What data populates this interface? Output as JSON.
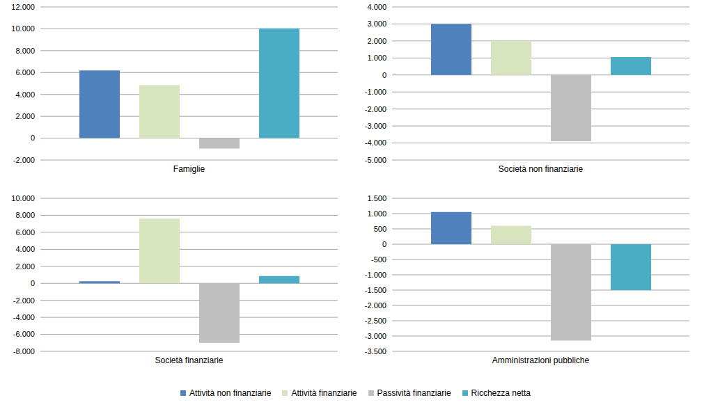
{
  "chart_data": [
    {
      "type": "bar",
      "categories": [
        "Famiglie"
      ],
      "grid": true,
      "ylim": [
        -2000,
        12000
      ],
      "yticks": [
        {
          "value": -2000,
          "label": "-2.000"
        },
        0,
        {
          "value": 2000,
          "label": "2.000"
        },
        {
          "value": 4000,
          "label": "4.000"
        },
        {
          "value": 6000,
          "label": "6.000"
        },
        {
          "value": 8000,
          "label": "8.000"
        },
        {
          "value": 10000,
          "label": "10.000"
        },
        {
          "value": 12000,
          "label": "12.000"
        }
      ],
      "series": [
        {
          "name": "Attività non finanziarie",
          "color": "#4f81bd",
          "values": [
            6200
          ]
        },
        {
          "name": "Attività finanziarie",
          "color": "#d7e4bd",
          "values": [
            4850
          ]
        },
        {
          "name": "Passività finanziarie",
          "color": "#bfbfbf",
          "values": [
            -950
          ]
        },
        {
          "name": "Ricchezza netta",
          "color": "#4bacc6",
          "values": [
            10050
          ]
        }
      ]
    },
    {
      "type": "bar",
      "categories": [
        "Società non finanziarie"
      ],
      "grid": true,
      "ylim": [
        -5000,
        4000
      ],
      "yticks": [
        {
          "value": -5000,
          "label": "-5.000"
        },
        {
          "value": -4000,
          "label": "-4.000"
        },
        {
          "value": -3000,
          "label": "-3.000"
        },
        {
          "value": -2000,
          "label": "-2.000"
        },
        {
          "value": -1000,
          "label": "-1.000"
        },
        0,
        {
          "value": 1000,
          "label": "1.000"
        },
        {
          "value": 2000,
          "label": "2.000"
        },
        {
          "value": 3000,
          "label": "3.000"
        },
        {
          "value": 4000,
          "label": "4.000"
        }
      ],
      "series": [
        {
          "name": "Attività non finanziarie",
          "color": "#4f81bd",
          "values": [
            3000
          ]
        },
        {
          "name": "Attività finanziarie",
          "color": "#d7e4bd",
          "values": [
            2000
          ]
        },
        {
          "name": "Passività finanziarie",
          "color": "#bfbfbf",
          "values": [
            -3900
          ]
        },
        {
          "name": "Ricchezza netta",
          "color": "#4bacc6",
          "values": [
            1050
          ]
        }
      ]
    },
    {
      "type": "bar",
      "categories": [
        "Società finanziarie"
      ],
      "grid": true,
      "ylim": [
        -8000,
        10000
      ],
      "yticks": [
        {
          "value": -8000,
          "label": "-8.000"
        },
        {
          "value": -6000,
          "label": "-6.000"
        },
        {
          "value": -4000,
          "label": "-4.000"
        },
        {
          "value": -2000,
          "label": "-2.000"
        },
        0,
        {
          "value": 2000,
          "label": "2.000"
        },
        {
          "value": 4000,
          "label": "4.000"
        },
        {
          "value": 6000,
          "label": "6.000"
        },
        {
          "value": 8000,
          "label": "8.000"
        },
        {
          "value": 10000,
          "label": "10.000"
        }
      ],
      "series": [
        {
          "name": "Attività non finanziarie",
          "color": "#4f81bd",
          "values": [
            250
          ]
        },
        {
          "name": "Attività finanziarie",
          "color": "#d7e4bd",
          "values": [
            7600
          ]
        },
        {
          "name": "Passività finanziarie",
          "color": "#bfbfbf",
          "values": [
            -7000
          ]
        },
        {
          "name": "Ricchezza netta",
          "color": "#4bacc6",
          "values": [
            850
          ]
        }
      ]
    },
    {
      "type": "bar",
      "categories": [
        "Amministrazioni pubbliche"
      ],
      "grid": true,
      "ylim": [
        -3500,
        1500
      ],
      "yticks": [
        {
          "value": -3500,
          "label": "-3.500"
        },
        {
          "value": -3000,
          "label": "-3.000"
        },
        {
          "value": -2500,
          "label": "-2.500"
        },
        {
          "value": -2000,
          "label": "-2.000"
        },
        {
          "value": -1500,
          "label": "-1.500"
        },
        {
          "value": -1000,
          "label": "-1.000"
        },
        -500,
        0,
        500,
        {
          "value": 1000,
          "label": "1.000"
        },
        {
          "value": 1500,
          "label": "1.500"
        }
      ],
      "series": [
        {
          "name": "Attività non finanziarie",
          "color": "#4f81bd",
          "values": [
            1050
          ]
        },
        {
          "name": "Attività finanziarie",
          "color": "#d7e4bd",
          "values": [
            600
          ]
        },
        {
          "name": "Passività finanziarie",
          "color": "#bfbfbf",
          "values": [
            -3150
          ]
        },
        {
          "name": "Ricchezza netta",
          "color": "#4bacc6",
          "values": [
            -1500
          ]
        }
      ]
    }
  ]
}
